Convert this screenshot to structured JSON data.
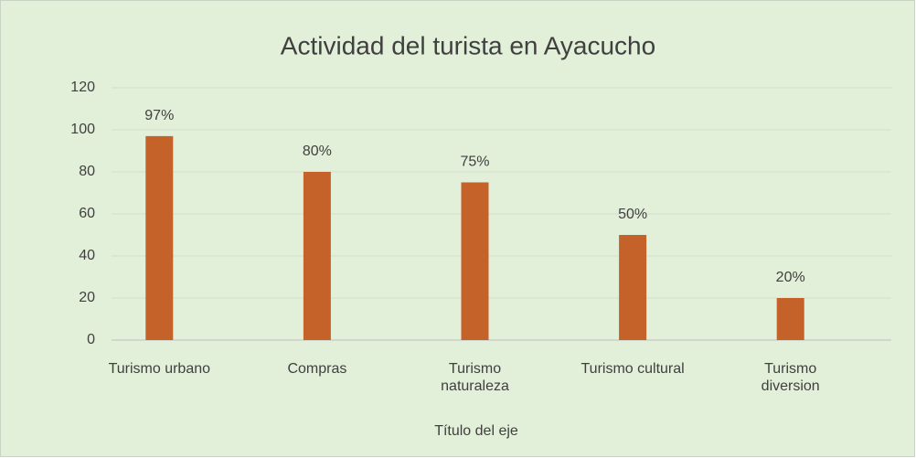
{
  "chart_data": {
    "type": "bar",
    "title": "Actividad del turista en Ayacucho",
    "categories": [
      "Turismo urbano",
      "Compras",
      "Turismo naturaleza",
      "Turismo cultural",
      "Turismo diversion"
    ],
    "values": [
      97,
      80,
      75,
      50,
      20
    ],
    "value_labels": [
      "97%",
      "80%",
      "75%",
      "50%",
      "20%"
    ],
    "color": "#c5622a",
    "x_label": "Título del eje",
    "ylim": [
      0,
      120
    ],
    "yticks": [
      0,
      20,
      40,
      60,
      80,
      100,
      120
    ],
    "grid": true
  }
}
